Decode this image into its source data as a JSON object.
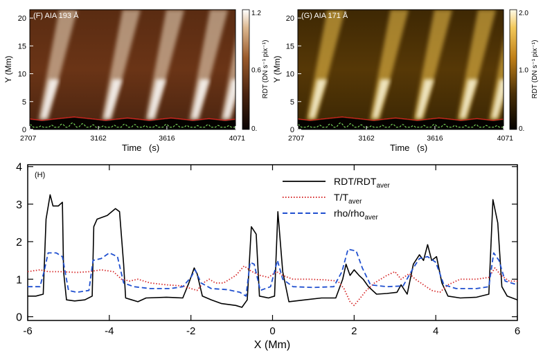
{
  "chart_data": [
    {
      "type": "heatmap",
      "panel_label": "(F) AIA 193 Å",
      "xlabel": "Time",
      "xunit": "(s)",
      "ylabel": "Y (Mm)",
      "x_ticks": [
        "2707",
        "3162",
        "3616",
        "4071"
      ],
      "xlim": [
        2707,
        4071
      ],
      "y_ticks": [
        "0",
        "5",
        "10",
        "15",
        "20"
      ],
      "ylim": [
        0,
        21.5
      ],
      "colorbar_label": "RDT (DN s⁻¹ pix⁻¹)",
      "colorbar_ticks": [
        "1.2",
        "0.6",
        "0."
      ],
      "colorbar_range": [
        0,
        1.2
      ],
      "colormap": "brown-white",
      "bright_band_times": [
        2790,
        3210,
        3500,
        3790,
        4000
      ],
      "overlay_lines": [
        {
          "color": "#d42020",
          "style": "solid",
          "meaning": "boundary contour"
        },
        {
          "color": "#7ee060",
          "style": "dashed",
          "meaning": "lower contour"
        }
      ]
    },
    {
      "type": "heatmap",
      "panel_label": "(G) AIA 171 Å",
      "xlabel": "Time",
      "xunit": "(s)",
      "ylabel": "Y (Mm)",
      "x_ticks": [
        "2707",
        "3162",
        "3616",
        "4071"
      ],
      "xlim": [
        2707,
        4071
      ],
      "y_ticks": [
        "0",
        "5",
        "10",
        "15",
        "20"
      ],
      "ylim": [
        0,
        21.5
      ],
      "colorbar_label": "RDT (DN s⁻¹ pix⁻¹)",
      "colorbar_ticks": [
        "2.0",
        "1.0",
        "0."
      ],
      "colorbar_range": [
        0,
        2.0
      ],
      "colormap": "gold",
      "bright_band_times": [
        2790,
        3210,
        3500,
        3790,
        4000
      ],
      "overlay_lines": [
        {
          "color": "#d42020",
          "style": "solid",
          "meaning": "boundary contour"
        },
        {
          "color": "#7ee060",
          "style": "dashed",
          "meaning": "lower contour"
        }
      ]
    },
    {
      "type": "line",
      "panel_label": "(H)",
      "xlabel": "X (Mm)",
      "ylabel": "",
      "xlim": [
        -6,
        6
      ],
      "ylim": [
        -0.1,
        4.05
      ],
      "x_ticks": [
        "-6",
        "-4",
        "-2",
        "0",
        "2",
        "4",
        "6"
      ],
      "y_ticks": [
        "0",
        "1",
        "2",
        "3",
        "4"
      ],
      "legend_position": "top-right",
      "series": [
        {
          "name": "RDT/RDT",
          "sub": "aver",
          "color": "#000000",
          "style": "solid",
          "points": [
            [
              -6.0,
              0.55
            ],
            [
              -5.8,
              0.55
            ],
            [
              -5.62,
              0.6
            ],
            [
              -5.55,
              2.6
            ],
            [
              -5.45,
              3.25
            ],
            [
              -5.38,
              2.95
            ],
            [
              -5.25,
              2.95
            ],
            [
              -5.15,
              3.05
            ],
            [
              -5.12,
              1.2
            ],
            [
              -5.05,
              0.45
            ],
            [
              -4.85,
              0.42
            ],
            [
              -4.6,
              0.45
            ],
            [
              -4.42,
              0.55
            ],
            [
              -4.38,
              2.4
            ],
            [
              -4.3,
              2.6
            ],
            [
              -4.05,
              2.7
            ],
            [
              -3.85,
              2.88
            ],
            [
              -3.75,
              2.8
            ],
            [
              -3.65,
              1.4
            ],
            [
              -3.6,
              0.5
            ],
            [
              -3.45,
              0.45
            ],
            [
              -3.3,
              0.4
            ],
            [
              -3.1,
              0.5
            ],
            [
              -2.6,
              0.52
            ],
            [
              -2.2,
              0.5
            ],
            [
              -2.05,
              0.9
            ],
            [
              -1.92,
              1.3
            ],
            [
              -1.85,
              1.15
            ],
            [
              -1.72,
              0.55
            ],
            [
              -1.5,
              0.45
            ],
            [
              -1.25,
              0.35
            ],
            [
              -0.9,
              0.3
            ],
            [
              -0.75,
              0.25
            ],
            [
              -0.62,
              0.45
            ],
            [
              -0.52,
              2.4
            ],
            [
              -0.4,
              2.2
            ],
            [
              -0.32,
              0.55
            ],
            [
              -0.1,
              0.5
            ],
            [
              0.05,
              0.55
            ],
            [
              0.13,
              2.8
            ],
            [
              0.25,
              1.2
            ],
            [
              0.4,
              0.4
            ],
            [
              0.8,
              0.45
            ],
            [
              1.2,
              0.5
            ],
            [
              1.55,
              0.5
            ],
            [
              1.72,
              1.0
            ],
            [
              1.8,
              1.4
            ],
            [
              1.9,
              1.1
            ],
            [
              2.0,
              1.25
            ],
            [
              2.12,
              1.1
            ],
            [
              2.22,
              1.0
            ],
            [
              2.35,
              0.8
            ],
            [
              2.55,
              0.6
            ],
            [
              2.8,
              0.62
            ],
            [
              3.05,
              0.65
            ],
            [
              3.15,
              0.85
            ],
            [
              3.3,
              0.6
            ],
            [
              3.45,
              1.4
            ],
            [
              3.6,
              1.65
            ],
            [
              3.7,
              1.5
            ],
            [
              3.8,
              1.92
            ],
            [
              3.9,
              1.5
            ],
            [
              4.02,
              1.6
            ],
            [
              4.15,
              0.9
            ],
            [
              4.3,
              0.55
            ],
            [
              4.6,
              0.5
            ],
            [
              5.0,
              0.52
            ],
            [
              5.3,
              0.6
            ],
            [
              5.4,
              3.12
            ],
            [
              5.52,
              2.5
            ],
            [
              5.62,
              0.8
            ],
            [
              5.75,
              0.55
            ],
            [
              6.0,
              0.45
            ]
          ]
        },
        {
          "name": "T/T",
          "sub": "aver",
          "color": "#d62728",
          "style": "dotted",
          "points": [
            [
              -6.0,
              1.2
            ],
            [
              -5.7,
              1.25
            ],
            [
              -5.5,
              1.2
            ],
            [
              -5.2,
              1.2
            ],
            [
              -4.8,
              1.18
            ],
            [
              -4.5,
              1.2
            ],
            [
              -4.2,
              1.25
            ],
            [
              -3.9,
              1.2
            ],
            [
              -3.7,
              1.0
            ],
            [
              -3.5,
              0.95
            ],
            [
              -3.3,
              1.0
            ],
            [
              -3.0,
              0.9
            ],
            [
              -2.6,
              0.85
            ],
            [
              -2.2,
              0.82
            ],
            [
              -2.0,
              0.75
            ],
            [
              -1.85,
              0.7
            ],
            [
              -1.7,
              0.9
            ],
            [
              -1.55,
              1.0
            ],
            [
              -1.4,
              0.9
            ],
            [
              -1.2,
              0.9
            ],
            [
              -0.9,
              1.1
            ],
            [
              -0.7,
              1.35
            ],
            [
              -0.5,
              1.2
            ],
            [
              -0.3,
              1.1
            ],
            [
              -0.1,
              1.05
            ],
            [
              0.1,
              1.2
            ],
            [
              0.25,
              1.1
            ],
            [
              0.5,
              1.0
            ],
            [
              0.9,
              1.0
            ],
            [
              1.3,
              0.98
            ],
            [
              1.6,
              0.95
            ],
            [
              1.75,
              0.75
            ],
            [
              1.9,
              0.4
            ],
            [
              2.0,
              0.3
            ],
            [
              2.15,
              0.5
            ],
            [
              2.3,
              0.7
            ],
            [
              2.5,
              0.9
            ],
            [
              2.8,
              1.1
            ],
            [
              3.0,
              1.2
            ],
            [
              3.15,
              1.0
            ],
            [
              3.35,
              1.15
            ],
            [
              3.5,
              1.0
            ],
            [
              3.7,
              0.85
            ],
            [
              3.9,
              0.7
            ],
            [
              4.1,
              0.65
            ],
            [
              4.3,
              0.85
            ],
            [
              4.6,
              1.0
            ],
            [
              5.0,
              1.0
            ],
            [
              5.3,
              1.05
            ],
            [
              5.45,
              1.3
            ],
            [
              5.6,
              1.1
            ],
            [
              5.8,
              0.95
            ],
            [
              6.0,
              0.95
            ]
          ]
        },
        {
          "name": "rho/rho",
          "sub": "aver",
          "color": "#1f4fcf",
          "style": "dashed",
          "points": [
            [
              -6.0,
              0.8
            ],
            [
              -5.7,
              0.8
            ],
            [
              -5.6,
              1.2
            ],
            [
              -5.5,
              1.7
            ],
            [
              -5.3,
              1.7
            ],
            [
              -5.15,
              1.6
            ],
            [
              -5.0,
              0.7
            ],
            [
              -4.8,
              0.65
            ],
            [
              -4.5,
              0.7
            ],
            [
              -4.4,
              1.5
            ],
            [
              -4.2,
              1.55
            ],
            [
              -4.0,
              1.7
            ],
            [
              -3.8,
              1.6
            ],
            [
              -3.65,
              0.9
            ],
            [
              -3.4,
              0.8
            ],
            [
              -3.0,
              0.75
            ],
            [
              -2.5,
              0.75
            ],
            [
              -2.2,
              0.8
            ],
            [
              -2.0,
              1.05
            ],
            [
              -1.9,
              1.25
            ],
            [
              -1.75,
              0.9
            ],
            [
              -1.5,
              0.75
            ],
            [
              -1.1,
              0.72
            ],
            [
              -0.8,
              0.65
            ],
            [
              -0.65,
              0.55
            ],
            [
              -0.55,
              1.45
            ],
            [
              -0.45,
              1.4
            ],
            [
              -0.3,
              0.7
            ],
            [
              -0.05,
              0.8
            ],
            [
              0.12,
              1.5
            ],
            [
              0.25,
              1.0
            ],
            [
              0.5,
              0.8
            ],
            [
              1.0,
              0.78
            ],
            [
              1.5,
              0.8
            ],
            [
              1.7,
              1.2
            ],
            [
              1.85,
              1.8
            ],
            [
              2.05,
              1.75
            ],
            [
              2.2,
              1.3
            ],
            [
              2.4,
              0.85
            ],
            [
              2.8,
              0.8
            ],
            [
              3.2,
              0.82
            ],
            [
              3.45,
              1.3
            ],
            [
              3.6,
              1.55
            ],
            [
              3.8,
              1.6
            ],
            [
              4.0,
              1.45
            ],
            [
              4.2,
              0.85
            ],
            [
              4.5,
              0.75
            ],
            [
              5.0,
              0.75
            ],
            [
              5.3,
              0.8
            ],
            [
              5.42,
              1.7
            ],
            [
              5.55,
              1.5
            ],
            [
              5.7,
              0.95
            ],
            [
              6.0,
              0.85
            ]
          ]
        }
      ]
    }
  ]
}
